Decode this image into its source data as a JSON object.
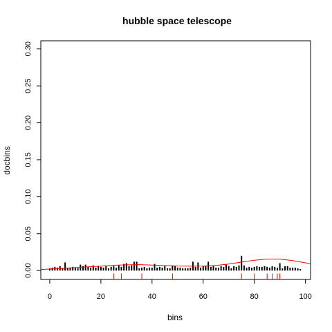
{
  "chart_data": {
    "type": "bar",
    "title": "hubble space telescope",
    "xlabel": "bins",
    "ylabel": "docbins",
    "xlim": [
      -3.5,
      102
    ],
    "ylim": [
      -0.012,
      0.311
    ],
    "x_ticks": [
      0,
      20,
      40,
      60,
      80,
      100
    ],
    "x_tick_labels": [
      "0",
      "20",
      "40",
      "60",
      "80",
      "100"
    ],
    "y_ticks": [
      0.0,
      0.05,
      0.1,
      0.15,
      0.2,
      0.25,
      0.3
    ],
    "y_tick_labels": [
      "0.00",
      "0.05",
      "0.10",
      "0.15",
      "0.20",
      "0.25",
      "0.30"
    ],
    "grid": false,
    "legend": "none",
    "series": [
      {
        "style": "histogram-spikes",
        "color": "#000000",
        "x": [
          0,
          1,
          2,
          3,
          4,
          5,
          6,
          7,
          8,
          9,
          10,
          11,
          12,
          13,
          14,
          15,
          16,
          17,
          18,
          19,
          20,
          21,
          22,
          23,
          24,
          25,
          26,
          27,
          28,
          29,
          30,
          31,
          32,
          33,
          34,
          35,
          36,
          37,
          38,
          39,
          40,
          41,
          42,
          43,
          44,
          45,
          46,
          47,
          48,
          49,
          50,
          51,
          52,
          53,
          54,
          55,
          56,
          57,
          58,
          59,
          60,
          61,
          62,
          63,
          64,
          65,
          66,
          67,
          68,
          69,
          70,
          71,
          72,
          73,
          74,
          75,
          76,
          77,
          78,
          79,
          80,
          81,
          82,
          83,
          84,
          85,
          86,
          87,
          88,
          89,
          90,
          91,
          92,
          93,
          94,
          95,
          96,
          97,
          98
        ],
        "values": [
          0.003,
          0.004,
          0.005,
          0.004,
          0.006,
          0.003,
          0.011,
          0.003,
          0.004,
          0.005,
          0.004,
          0.003,
          0.008,
          0.006,
          0.008,
          0.005,
          0.004,
          0.007,
          0.004,
          0.006,
          0.005,
          0.004,
          0.006,
          0.003,
          0.005,
          0.006,
          0.004,
          0.007,
          0.005,
          0.009,
          0.01,
          0.006,
          0.007,
          0.012,
          0.012,
          0.003,
          0.004,
          0.005,
          0.003,
          0.004,
          0.004,
          0.009,
          0.004,
          0.005,
          0.004,
          0.006,
          0.003,
          0.003,
          0.007,
          0.006,
          0.004,
          0.004,
          0.003,
          0.003,
          0.003,
          0.004,
          0.012,
          0.005,
          0.011,
          0.004,
          0.006,
          0.006,
          0.012,
          0.005,
          0.006,
          0.004,
          0.004,
          0.006,
          0.005,
          0.008,
          0.006,
          0.003,
          0.006,
          0.005,
          0.007,
          0.02,
          0.007,
          0.004,
          0.005,
          0.004,
          0.005,
          0.006,
          0.005,
          0.005,
          0.006,
          0.005,
          0.004,
          0.006,
          0.005,
          0.004,
          0.01,
          0.003,
          0.006,
          0.006,
          0.004,
          0.004,
          0.004,
          0.003,
          0.002
        ]
      },
      {
        "style": "smooth-line",
        "color": "#ff0000",
        "x": [
          -3.5,
          0,
          5,
          10,
          15,
          20,
          25,
          30,
          35,
          40,
          45,
          50,
          55,
          60,
          65,
          70,
          75,
          80,
          85,
          90,
          95,
          100,
          102
        ],
        "values": [
          0.0015,
          0.002,
          0.003,
          0.004,
          0.005,
          0.006,
          0.0072,
          0.0078,
          0.008,
          0.0075,
          0.0068,
          0.0062,
          0.006,
          0.0062,
          0.007,
          0.0088,
          0.0115,
          0.014,
          0.0155,
          0.0155,
          0.0135,
          0.0105,
          0.009
        ]
      },
      {
        "style": "rug",
        "color": "#ff0000",
        "x": [
          25,
          28,
          36,
          48,
          75,
          80,
          85,
          87,
          89,
          90
        ],
        "height": 0.008
      }
    ]
  }
}
